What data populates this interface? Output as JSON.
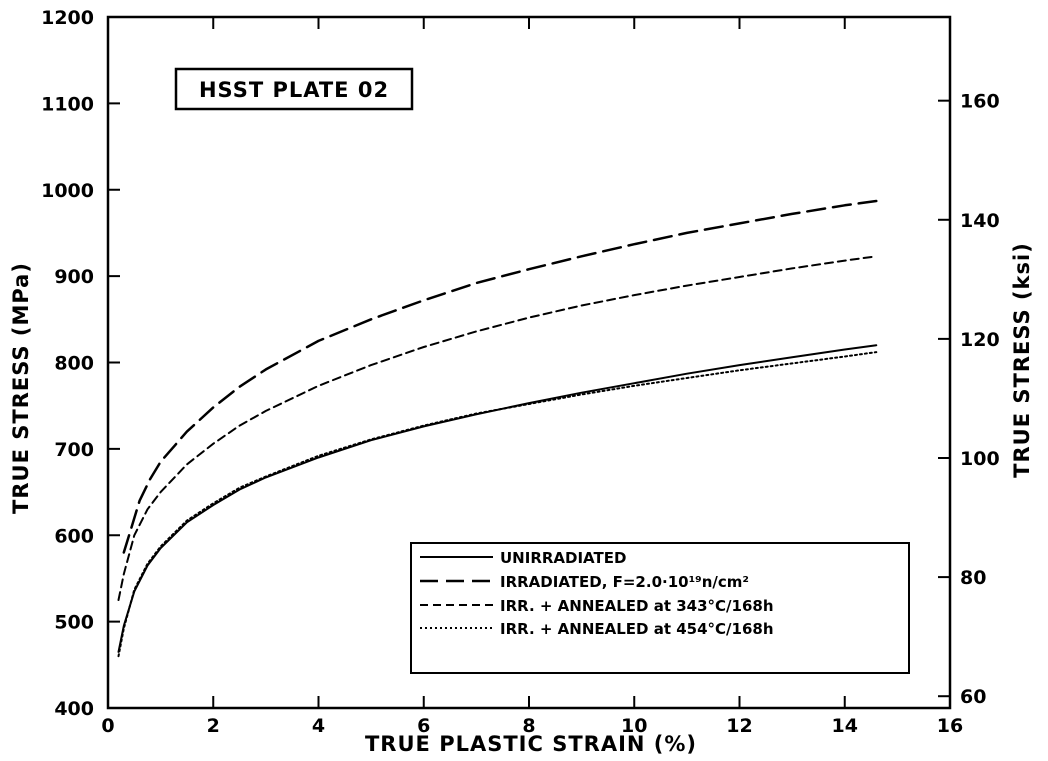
{
  "chart_data": {
    "type": "line",
    "title": "HSST PLATE 02",
    "xlabel": "TRUE PLASTIC STRAIN (%)",
    "ylabel": "TRUE STRESS (MPa)",
    "ylabel_right": "TRUE STRESS (ksi)",
    "xlim": [
      0,
      16
    ],
    "ylim": [
      400,
      1200
    ],
    "ylim_right": [
      58.02,
      174.05
    ],
    "x_ticks": [
      "0",
      "2",
      "4",
      "6",
      "8",
      "10",
      "12",
      "14",
      "16"
    ],
    "y_ticks": [
      "400",
      "500",
      "600",
      "700",
      "800",
      "900",
      "1000",
      "1100",
      "1200"
    ],
    "y_ticks_right": [
      "60",
      "80",
      "100",
      "120",
      "140",
      "160"
    ],
    "grid": false,
    "legend_position": "bottom-right",
    "series": [
      {
        "name": "UNIRRADIATED",
        "style": "solid",
        "x": [
          0.2,
          0.3,
          0.5,
          0.75,
          1.0,
          1.5,
          2,
          2.5,
          3,
          4,
          5,
          6,
          7,
          8,
          9,
          10,
          11,
          12,
          13,
          14,
          14.6
        ],
        "y": [
          465,
          495,
          535,
          565,
          585,
          615,
          635,
          653,
          667,
          690,
          710,
          726,
          740,
          753,
          765,
          776,
          787,
          797,
          806,
          815,
          820
        ]
      },
      {
        "name": "IRRADIATED, F=2.0·10¹⁹n/cm²",
        "style": "long-dash",
        "x": [
          0.3,
          0.4,
          0.6,
          0.8,
          1.0,
          1.5,
          2,
          2.5,
          3,
          4,
          5,
          6,
          7,
          8,
          9,
          10,
          11,
          12,
          13,
          14,
          14.6
        ],
        "y": [
          580,
          600,
          640,
          665,
          685,
          720,
          748,
          772,
          792,
          825,
          850,
          872,
          892,
          908,
          923,
          937,
          950,
          961,
          972,
          982,
          987
        ]
      },
      {
        "name": "IRR. + ANNEALED at 343°C/168h",
        "style": "dashed",
        "x": [
          0.2,
          0.3,
          0.5,
          0.75,
          1.0,
          1.5,
          2,
          2.5,
          3,
          4,
          5,
          6,
          7,
          8,
          9,
          10,
          11,
          12,
          13,
          14,
          14.6
        ],
        "y": [
          525,
          555,
          600,
          630,
          650,
          682,
          706,
          727,
          744,
          773,
          797,
          818,
          836,
          852,
          866,
          878,
          889,
          899,
          909,
          918,
          923
        ]
      },
      {
        "name": "IRR. + ANNEALED at 454°C/168h",
        "style": "dotted",
        "x": [
          0.2,
          0.3,
          0.5,
          0.75,
          1.0,
          1.5,
          2,
          2.5,
          3,
          4,
          5,
          6,
          7,
          8,
          9,
          10,
          11,
          12,
          13,
          14,
          14.6
        ],
        "y": [
          460,
          492,
          537,
          567,
          587,
          617,
          637,
          655,
          668,
          692,
          711,
          727,
          741,
          752,
          763,
          773,
          782,
          791,
          799,
          807,
          812
        ]
      }
    ]
  }
}
